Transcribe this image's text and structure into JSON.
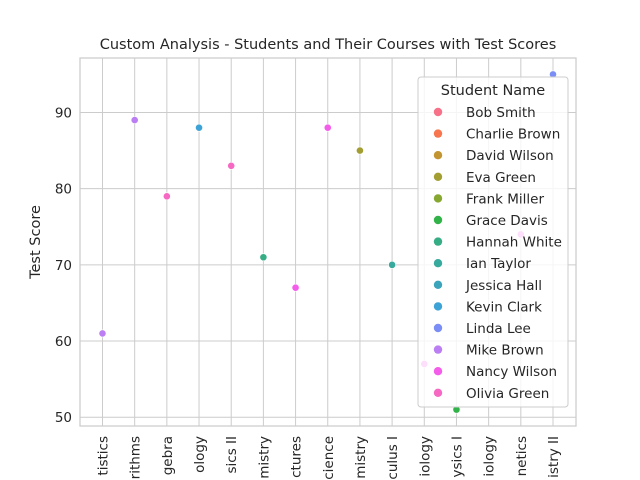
{
  "chart_data": {
    "type": "scatter",
    "title": "Custom Analysis - Students and Their Courses with Test Scores",
    "xlabel": "",
    "ylabel": "Test Score",
    "ylim": [
      48.85,
      97.15
    ],
    "yticks": [
      50,
      60,
      70,
      80,
      90
    ],
    "grid": true,
    "legend_position": "top-right",
    "legend_title": "Student Name",
    "categories": [
      "tistics",
      "rithms",
      "gebra",
      "ology",
      "sics II",
      "mistry",
      "ctures",
      "cience",
      "mistry",
      "culus I",
      "iology",
      "ysics I",
      "iology",
      "netics",
      "istry II"
    ],
    "series": [
      {
        "name": "Bob Smith",
        "color": "#f77189",
        "points": []
      },
      {
        "name": "Charlie Brown",
        "color": "#f7754f",
        "points": []
      },
      {
        "name": "David Wilson",
        "color": "#c39532",
        "points": []
      },
      {
        "name": "Eva Green",
        "color": "#a39e31",
        "points": [
          {
            "x": 8,
            "y": 85
          }
        ]
      },
      {
        "name": "Frank Miller",
        "color": "#86a831",
        "points": []
      },
      {
        "name": "Grace Davis",
        "color": "#32b34a",
        "points": [
          {
            "x": 11,
            "y": 51
          }
        ]
      },
      {
        "name": "Hannah White",
        "color": "#36ad85",
        "points": [
          {
            "x": 5,
            "y": 71
          }
        ]
      },
      {
        "name": "Ian Taylor",
        "color": "#38aa9d",
        "points": [
          {
            "x": 9,
            "y": 70
          }
        ]
      },
      {
        "name": "Jessica Hall",
        "color": "#3ba3ba",
        "points": []
      },
      {
        "name": "Kevin Clark",
        "color": "#3da3d6",
        "points": [
          {
            "x": 3,
            "y": 88
          }
        ]
      },
      {
        "name": "Linda Lee",
        "color": "#7b8ef5",
        "points": [
          {
            "x": 14,
            "y": 95
          }
        ]
      },
      {
        "name": "Mike Brown",
        "color": "#bb7ef3",
        "points": [
          {
            "x": 0,
            "y": 61
          },
          {
            "x": 1,
            "y": 89
          }
        ]
      },
      {
        "name": "Nancy Wilson",
        "color": "#f45de9",
        "points": [
          {
            "x": 6,
            "y": 67
          },
          {
            "x": 7,
            "y": 88
          },
          {
            "x": 10,
            "y": 57
          },
          {
            "x": 13,
            "y": 74
          }
        ]
      },
      {
        "name": "Olivia Green",
        "color": "#f668c2",
        "points": [
          {
            "x": 2,
            "y": 79
          },
          {
            "x": 4,
            "y": 83
          }
        ]
      }
    ]
  }
}
